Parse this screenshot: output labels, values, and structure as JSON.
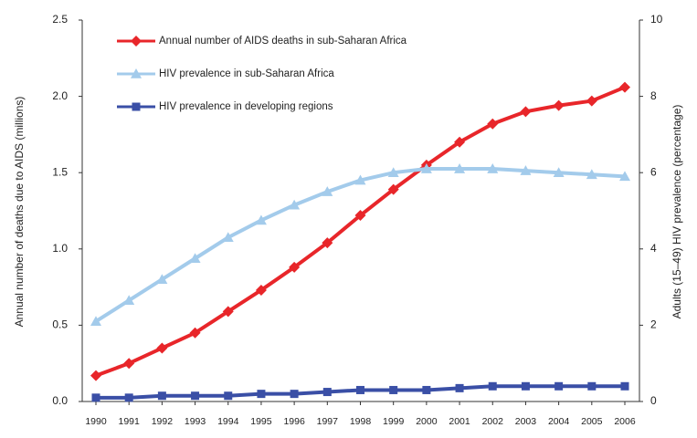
{
  "chart_data": {
    "type": "line",
    "categories": [
      "1990",
      "1991",
      "1992",
      "1993",
      "1994",
      "1995",
      "1996",
      "1997",
      "1998",
      "1999",
      "2000",
      "2001",
      "2002",
      "2003",
      "2004",
      "2005",
      "2006"
    ],
    "ylabel": "Annual number of deaths due to AIDS (millions)",
    "y2label": "Adults (15–49) HIV prevalence (percentage)",
    "ylim": [
      0,
      2.5
    ],
    "yticks": [
      {
        "value": 0,
        "label": "0.0"
      },
      0.5,
      {
        "value": 1,
        "label": "1.0"
      },
      1.5,
      {
        "value": 2,
        "label": "2.0"
      },
      2.5
    ],
    "y2lim": [
      0,
      10
    ],
    "y2ticks": [
      0,
      2,
      4,
      6,
      8,
      10
    ],
    "legend": "upper left",
    "series": [
      {
        "name": "Annual number of AIDS deaths in sub-Saharan Africa",
        "color": "#e8262a",
        "marker": "diamond",
        "values": [
          0.17,
          0.25,
          0.35,
          0.45,
          0.59,
          0.73,
          0.88,
          1.04,
          1.22,
          1.39,
          1.55,
          1.7,
          1.82,
          1.9,
          1.94,
          1.97,
          2.06
        ]
      },
      {
        "name": "HIV prevalence in sub-Saharan Africa",
        "color": "#a3cbeb",
        "marker": "triangle",
        "axis": "y2",
        "values": [
          2.1,
          2.65,
          3.2,
          3.75,
          4.3,
          4.75,
          5.15,
          5.5,
          5.8,
          6.0,
          6.1,
          6.1,
          6.1,
          6.05,
          6.0,
          5.95,
          5.9
        ]
      },
      {
        "name": "HIV prevalence in developing regions",
        "color": "#3a4fa6",
        "marker": "square",
        "axis": "y2",
        "values": [
          0.1,
          0.1,
          0.15,
          0.15,
          0.15,
          0.2,
          0.2,
          0.25,
          0.3,
          0.3,
          0.3,
          0.35,
          0.4,
          0.4,
          0.4,
          0.4,
          0.4
        ]
      }
    ]
  }
}
